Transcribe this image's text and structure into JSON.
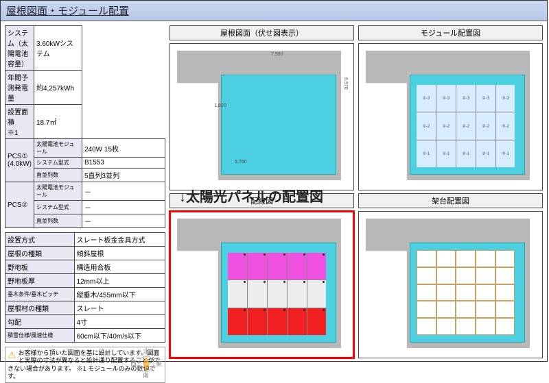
{
  "title": "屋根図面・モジュール配置",
  "callout": "↓太陽光パネルの配置図",
  "spec1": {
    "rows": [
      {
        "label": "システム（太陽電池容量）",
        "value": "3.60kWシステム"
      },
      {
        "label": "年間予測発電量",
        "value": "約4,257kWh"
      },
      {
        "label": "設置面積　※1",
        "value": "18.7㎡"
      }
    ],
    "pcs1": {
      "head": "PCS①\n(4.0kW)",
      "rows": [
        {
          "label": "太陽電池モジュール",
          "value": "240W 15枚"
        },
        {
          "label": "システム型式",
          "value": "B1553"
        },
        {
          "label": "直並列数",
          "value": "5直列3並列"
        }
      ]
    },
    "pcs2": {
      "head": "PCS②",
      "rows": [
        {
          "label": "太陽電池モジュール",
          "value": "－"
        },
        {
          "label": "システム型式",
          "value": "－"
        },
        {
          "label": "直並列数",
          "value": "－"
        }
      ]
    }
  },
  "spec2": [
    {
      "label": "設置方式",
      "value": "スレート板金金具方式"
    },
    {
      "label": "屋根の種類",
      "value": "傾斜屋根"
    },
    {
      "label": "野地板",
      "value": "構造用合板"
    },
    {
      "label": "野地板厚",
      "value": "12mm以上"
    },
    {
      "label": "垂木条件/垂木ピッチ",
      "value": "縦垂木/455mm以下",
      "small": true
    },
    {
      "label": "屋根材の種類",
      "value": "スレート"
    },
    {
      "label": "勾配",
      "value": "4寸"
    },
    {
      "label": "積雪仕様/風速仕様",
      "value": "60cm以下/40m/s以下",
      "small": true
    }
  ],
  "note": "お客様から頂いた図面を基に設計しています。図面と実際の寸法が異なると設計通り配置することができない場合があります。\n※1 モジュールのみの数値です。",
  "compass": {
    "n": "北",
    "e": "東",
    "s": "南",
    "w": "西"
  },
  "panels": {
    "p1": {
      "title": "屋根図面（伏せ図表示）",
      "dim_w": "7,580",
      "dim_h": "6,970",
      "inner_w": "5,760",
      "inner_h": "1,820"
    },
    "p2": {
      "title": "モジュール配置図"
    },
    "p3": {
      "title": "配線図"
    },
    "p4": {
      "title": "架台配置図"
    }
  },
  "module_layout": {
    "cols": 5,
    "rows": 3,
    "labels": [
      "①-3",
      "①-3",
      "②-3",
      "②-3",
      "③-3",
      "①-2",
      "①-2",
      "②-2",
      "②-2",
      "③-2",
      "①-1",
      "①-1",
      "②-1",
      "②-1",
      "③-1"
    ]
  },
  "wiring_colors": {
    "row1": "mag",
    "row2": "wht",
    "row3": "red"
  },
  "colors": {
    "roof_gray": "#b8b8b8",
    "roof_surface": "#4dd0e1",
    "highlight": "#ff0000",
    "magenta": "#f050e0",
    "red": "#f02020"
  }
}
